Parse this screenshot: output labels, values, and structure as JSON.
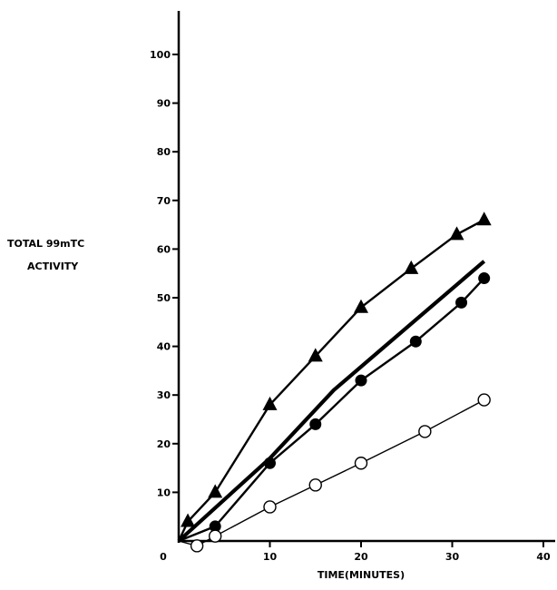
{
  "chart_data": {
    "type": "line",
    "title": "",
    "xlabel": "TIME(MINUTES)",
    "ylabel_line1": "TOTAL 99mTC",
    "ylabel_line2": "ACTIVITY",
    "xlim": [
      0,
      40
    ],
    "ylim": [
      0,
      100
    ],
    "x_ticks": [
      0,
      10,
      20,
      30,
      40
    ],
    "y_ticks": [
      10,
      20,
      30,
      40,
      50,
      60,
      70,
      80,
      90,
      100
    ],
    "grid": false,
    "legend": "none",
    "series": [
      {
        "marker": "filled-triangle",
        "line_width": "medium",
        "points": [
          [
            0,
            0
          ],
          [
            1,
            4
          ],
          [
            4,
            10
          ],
          [
            10,
            28
          ],
          [
            15,
            38
          ],
          [
            20,
            48
          ],
          [
            25.5,
            56
          ],
          [
            30.5,
            63
          ],
          [
            33.5,
            66
          ]
        ]
      },
      {
        "marker": "none",
        "line_width": "thick",
        "points": [
          [
            0,
            0
          ],
          [
            10,
            17
          ],
          [
            17,
            31
          ],
          [
            33.5,
            57.5
          ]
        ]
      },
      {
        "marker": "filled-circle",
        "line_width": "medium",
        "points": [
          [
            0,
            0
          ],
          [
            4,
            3
          ],
          [
            10,
            16
          ],
          [
            15,
            24
          ],
          [
            20,
            33
          ],
          [
            26,
            41
          ],
          [
            31,
            49
          ],
          [
            33.5,
            54
          ]
        ]
      },
      {
        "marker": "open-circle",
        "line_width": "thin",
        "points": [
          [
            0,
            0
          ],
          [
            2,
            -1
          ],
          [
            4,
            1
          ],
          [
            10,
            7
          ],
          [
            15,
            11.5
          ],
          [
            20,
            16
          ],
          [
            27,
            22.5
          ],
          [
            33.5,
            29
          ]
        ]
      }
    ]
  }
}
